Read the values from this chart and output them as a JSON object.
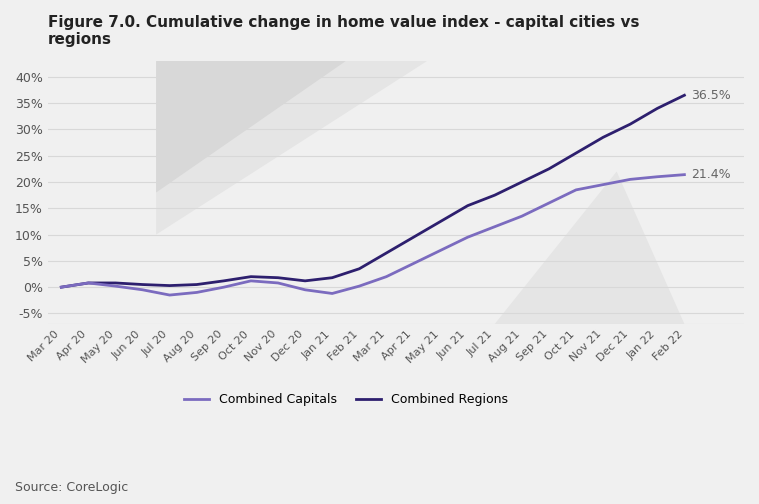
{
  "title_line1": "Figure 7.0. Cumulative change in home value index - capital cities vs",
  "title_line2": "regions",
  "x_labels": [
    "Mar 20",
    "Apr 20",
    "May 20",
    "Jun 20",
    "Jul 20",
    "Aug 20",
    "Sep 20",
    "Oct 20",
    "Nov 20",
    "Dec 20",
    "Jan 21",
    "Feb 21",
    "Mar 21",
    "Apr 21",
    "May 21",
    "Jun 21",
    "Jul 21",
    "Aug 21",
    "Sep 21",
    "Oct 21",
    "Nov 21",
    "Dec 21",
    "Jan 22",
    "Feb 22"
  ],
  "capitals": [
    0.0,
    0.8,
    0.2,
    -0.5,
    -1.5,
    -1.0,
    0.0,
    1.2,
    0.8,
    -0.5,
    -1.2,
    0.2,
    2.0,
    4.5,
    7.0,
    9.5,
    11.5,
    13.5,
    16.0,
    18.5,
    19.5,
    20.5,
    21.0,
    21.4
  ],
  "regions": [
    0.0,
    0.8,
    0.8,
    0.5,
    0.3,
    0.5,
    1.2,
    2.0,
    1.8,
    1.2,
    1.8,
    3.5,
    6.5,
    9.5,
    12.5,
    15.5,
    17.5,
    20.0,
    22.5,
    25.5,
    28.5,
    31.0,
    34.0,
    36.5
  ],
  "capitals_color": "#7b6bbf",
  "regions_color": "#2d1f6e",
  "end_label_capitals": "21.4%",
  "end_label_regions": "36.5%",
  "ylim": [
    -7,
    43
  ],
  "yticks": [
    -5,
    0,
    5,
    10,
    15,
    20,
    25,
    30,
    35,
    40
  ],
  "source_text": "Source: CoreLogic",
  "legend_capitals": "Combined Capitals",
  "legend_regions": "Combined Regions",
  "background_color": "#f0f0f0",
  "plot_bg_color": "#f0f0f0",
  "grid_color": "#d8d8d8",
  "title_fontsize": 11,
  "label_fontsize": 9,
  "end_label_color": "#666666"
}
